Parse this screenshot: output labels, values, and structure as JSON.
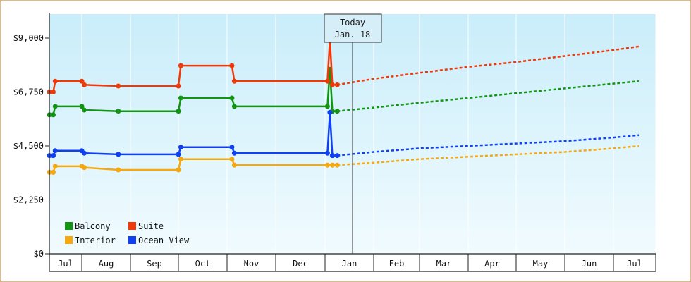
{
  "chart_data": {
    "type": "line",
    "y_ticks": [
      "$0",
      "$2,250",
      "$4,500",
      "$6,750",
      "$9,000"
    ],
    "ylim": [
      0,
      10000
    ],
    "x_ticks": [
      "Jul",
      "Aug",
      "Sep",
      "Oct",
      "Nov",
      "Dec",
      "Jan",
      "Feb",
      "Mar",
      "Apr",
      "May",
      "Jun",
      "Jul"
    ],
    "marker": {
      "line1": "Today",
      "line2": "Jan. 18"
    },
    "legend_placement": "bottom-left",
    "grid": {
      "vertical": true,
      "horizontal": false
    },
    "series": [
      {
        "name": "Balcony",
        "color": "#139413",
        "points": [
          [
            0,
            5800
          ],
          [
            0.12,
            5800
          ],
          [
            0.18,
            6150
          ],
          [
            1.0,
            6150
          ],
          [
            1.05,
            6000
          ],
          [
            1.75,
            5950
          ],
          [
            3.0,
            5950
          ],
          [
            3.05,
            6500
          ],
          [
            4.1,
            6500
          ],
          [
            4.15,
            6150
          ],
          [
            6.05,
            6150
          ],
          [
            6.1,
            7700
          ],
          [
            6.15,
            5950
          ],
          [
            6.25,
            5950
          ]
        ],
        "forecast": [
          [
            6.25,
            5950
          ],
          [
            7,
            6100
          ],
          [
            8,
            6300
          ],
          [
            9,
            6500
          ],
          [
            10,
            6700
          ],
          [
            11,
            6900
          ],
          [
            12,
            7100
          ],
          [
            12.6,
            7200
          ]
        ]
      },
      {
        "name": "Suite",
        "color": "#ee3a0a",
        "points": [
          [
            0,
            6750
          ],
          [
            0.12,
            6750
          ],
          [
            0.18,
            7200
          ],
          [
            1.0,
            7200
          ],
          [
            1.05,
            7050
          ],
          [
            1.75,
            7000
          ],
          [
            3.0,
            7000
          ],
          [
            3.05,
            7850
          ],
          [
            4.1,
            7850
          ],
          [
            4.15,
            7200
          ],
          [
            6.05,
            7200
          ],
          [
            6.1,
            8950
          ],
          [
            6.15,
            7050
          ],
          [
            6.25,
            7050
          ]
        ],
        "forecast": [
          [
            6.25,
            7050
          ],
          [
            7,
            7300
          ],
          [
            8,
            7550
          ],
          [
            9,
            7800
          ],
          [
            10,
            8000
          ],
          [
            11,
            8250
          ],
          [
            12,
            8500
          ],
          [
            12.6,
            8650
          ]
        ]
      },
      {
        "name": "Interior",
        "color": "#f5a810",
        "points": [
          [
            0,
            3400
          ],
          [
            0.12,
            3400
          ],
          [
            0.18,
            3650
          ],
          [
            1.0,
            3650
          ],
          [
            1.05,
            3600
          ],
          [
            1.75,
            3500
          ],
          [
            3.0,
            3500
          ],
          [
            3.05,
            3950
          ],
          [
            4.1,
            3950
          ],
          [
            4.15,
            3700
          ],
          [
            6.05,
            3700
          ],
          [
            6.15,
            3700
          ],
          [
            6.25,
            3700
          ]
        ],
        "forecast": [
          [
            6.25,
            3700
          ],
          [
            7,
            3800
          ],
          [
            8,
            3950
          ],
          [
            9,
            4050
          ],
          [
            10,
            4150
          ],
          [
            11,
            4250
          ],
          [
            12,
            4400
          ],
          [
            12.6,
            4500
          ]
        ]
      },
      {
        "name": "Ocean View",
        "color": "#1040f0",
        "points": [
          [
            0,
            4100
          ],
          [
            0.12,
            4100
          ],
          [
            0.18,
            4300
          ],
          [
            1.0,
            4300
          ],
          [
            1.05,
            4200
          ],
          [
            1.75,
            4150
          ],
          [
            3.0,
            4150
          ],
          [
            3.05,
            4450
          ],
          [
            4.1,
            4450
          ],
          [
            4.15,
            4200
          ],
          [
            6.05,
            4200
          ],
          [
            6.1,
            5900
          ],
          [
            6.15,
            4100
          ],
          [
            6.25,
            4100
          ]
        ],
        "forecast": [
          [
            6.25,
            4100
          ],
          [
            7,
            4250
          ],
          [
            8,
            4400
          ],
          [
            9,
            4500
          ],
          [
            10,
            4600
          ],
          [
            11,
            4700
          ],
          [
            12,
            4850
          ],
          [
            12.6,
            4950
          ]
        ]
      }
    ]
  }
}
